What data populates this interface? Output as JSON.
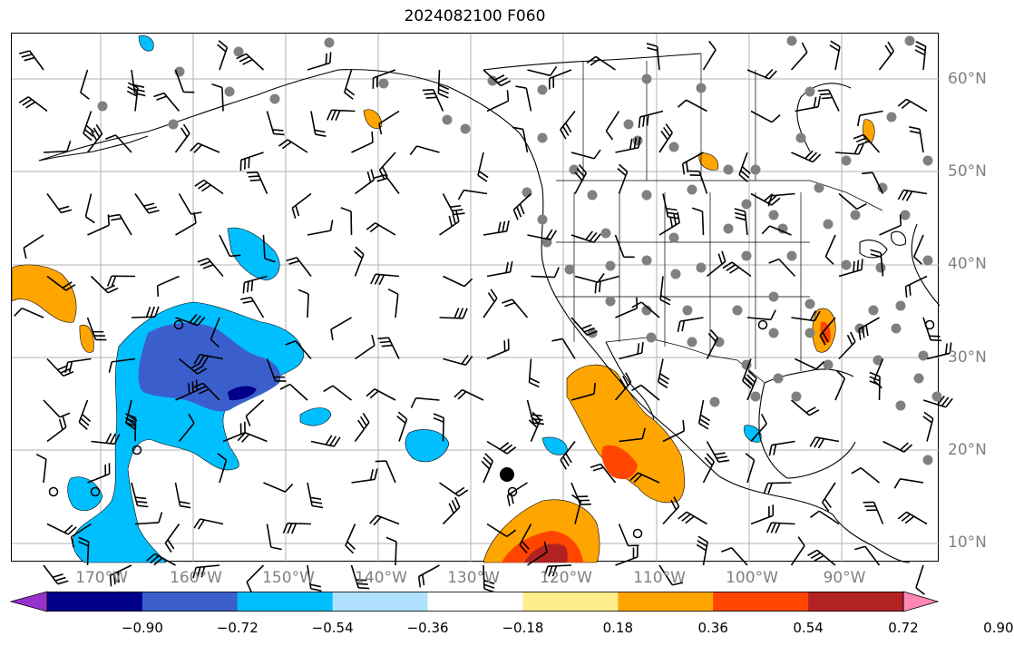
{
  "title": "2024082100 F060",
  "lat_labels": [
    "60°N",
    "50°N",
    "40°N",
    "30°N",
    "20°N",
    "10°N"
  ],
  "lon_labels": [
    "170°W",
    "160°W",
    "150°W",
    "140°W",
    "130°W",
    "120°W",
    "110°W",
    "100°W",
    "90°W"
  ],
  "colorbar": {
    "ticks": [
      "−0.90",
      "−0.72",
      "−0.54",
      "−0.36",
      "−0.18",
      "0.18",
      "0.36",
      "0.54",
      "0.72",
      "0.90"
    ],
    "colors": [
      "#9932cc",
      "#00008b",
      "#3a5fcd",
      "#00bfff",
      "#b0e2ff",
      "#ffffff",
      "#ffec8b",
      "#ffa500",
      "#ff4500",
      "#b22222",
      "#ff88b5"
    ]
  },
  "field_colors": {
    "light_blue": "#00bfff",
    "mid_blue": "#3a5fcd",
    "dark_blue": "#00008b",
    "orange": "#ffa500",
    "red_orange": "#ff4500",
    "dark_red": "#b22222",
    "station_dot": "#808080"
  },
  "chart_data": {
    "type": "map",
    "map_extent": {
      "lon": [
        -180,
        -80
      ],
      "lat": [
        8,
        65
      ]
    },
    "gridlines": true,
    "lat_ticks": [
      60,
      50,
      40,
      30,
      20,
      10
    ],
    "lon_ticks": [
      -170,
      -160,
      -150,
      -140,
      -130,
      -120,
      -110,
      -100,
      -90
    ]
  }
}
